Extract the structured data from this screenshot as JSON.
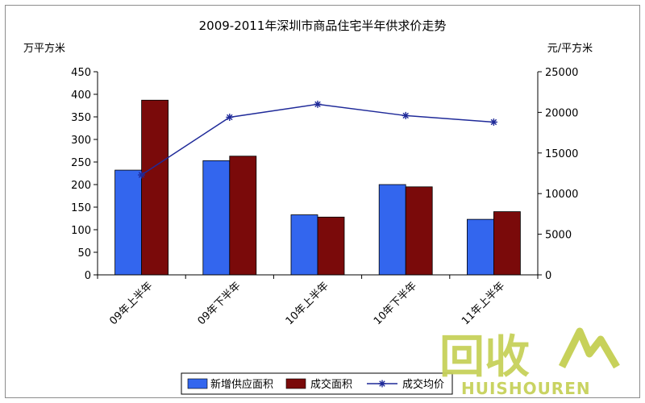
{
  "chart_data": {
    "type": "bar",
    "title": "2009-2011年深圳市商品住宅半年供求价走势",
    "left_unit": "万平方米",
    "right_unit": "元/平方米",
    "categories": [
      "09年上半年",
      "09年下半年",
      "10年上半年",
      "10年下半年",
      "11年上半年"
    ],
    "series": [
      {
        "name": "新增供应面积",
        "type": "bar",
        "axis": "left",
        "color": "#3366ee",
        "values": [
          232,
          253,
          133,
          200,
          123
        ]
      },
      {
        "name": "成交面积",
        "type": "bar",
        "axis": "left",
        "color": "#7a0a0a",
        "values": [
          387,
          263,
          128,
          195,
          140
        ]
      },
      {
        "name": "成交均价",
        "type": "line",
        "axis": "right",
        "color": "#1f2a99",
        "values": [
          12300,
          19400,
          21000,
          19600,
          18800
        ]
      }
    ],
    "y_left": {
      "min": 0,
      "max": 450,
      "ticks": [
        0,
        50,
        100,
        150,
        200,
        250,
        300,
        350,
        400,
        450
      ]
    },
    "y_right": {
      "min": 0,
      "max": 25000,
      "ticks": [
        0,
        5000,
        10000,
        15000,
        20000,
        25000
      ]
    },
    "legend_position": "bottom",
    "grid": false
  },
  "watermark": {
    "cn": "回收",
    "en": "HUISHOUREN"
  }
}
